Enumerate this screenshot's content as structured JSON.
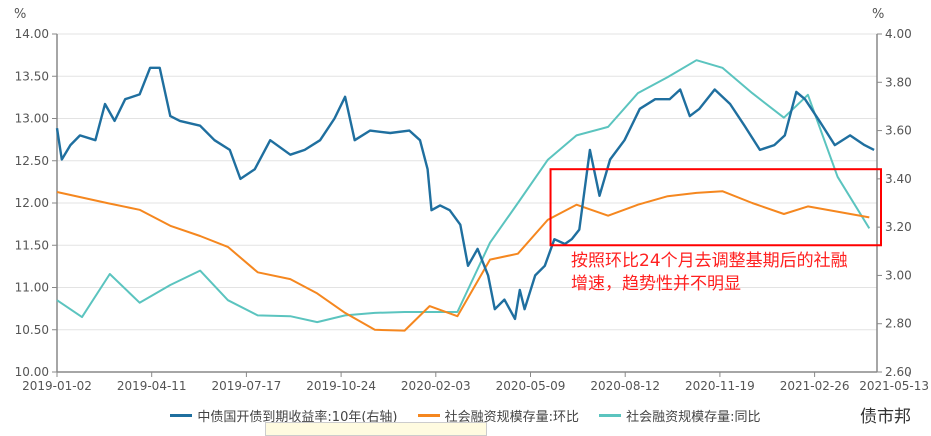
{
  "chart_data": {
    "type": "line",
    "left_unit": "%",
    "right_unit": "%",
    "left_ylim": [
      10.0,
      14.0
    ],
    "right_ylim": [
      2.6,
      4.0
    ],
    "left_ticks": [
      "10.00",
      "10.50",
      "11.00",
      "11.50",
      "12.00",
      "12.50",
      "13.00",
      "13.50",
      "14.00"
    ],
    "right_ticks": [
      "2.60",
      "2.80",
      "3.00",
      "3.20",
      "3.40",
      "3.60",
      "3.80",
      "4.00"
    ],
    "x_range": [
      "2019-01-02",
      "2021-05-05"
    ],
    "x_ticks": [
      "2019-01-02",
      "2019-04-11",
      "2019-07-17",
      "2019-10-24",
      "2020-02-03",
      "2020-05-09",
      "2020-08-12",
      "2020-11-19",
      "2021-02-26",
      "2021-05-13"
    ],
    "grid": "horizontal",
    "legend_position": "bottom",
    "series": [
      {
        "name": "中债国开债到期收益率:10年(右轴)",
        "axis": "right",
        "color": "#1f6f9f",
        "points": [
          [
            "2019-01-02",
            3.61
          ],
          [
            "2019-01-07",
            3.48
          ],
          [
            "2019-01-16",
            3.54
          ],
          [
            "2019-01-26",
            3.58
          ],
          [
            "2019-02-11",
            3.56
          ],
          [
            "2019-02-21",
            3.71
          ],
          [
            "2019-03-03",
            3.64
          ],
          [
            "2019-03-14",
            3.73
          ],
          [
            "2019-03-29",
            3.75
          ],
          [
            "2019-04-09",
            3.86
          ],
          [
            "2019-04-19",
            3.86
          ],
          [
            "2019-04-30",
            3.66
          ],
          [
            "2019-05-10",
            3.64
          ],
          [
            "2019-05-31",
            3.62
          ],
          [
            "2019-06-15",
            3.56
          ],
          [
            "2019-07-01",
            3.52
          ],
          [
            "2019-07-12",
            3.4
          ],
          [
            "2019-07-27",
            3.44
          ],
          [
            "2019-08-12",
            3.56
          ],
          [
            "2019-09-02",
            3.5
          ],
          [
            "2019-09-17",
            3.52
          ],
          [
            "2019-10-03",
            3.56
          ],
          [
            "2019-10-18",
            3.65
          ],
          [
            "2019-10-29",
            3.74
          ],
          [
            "2019-11-08",
            3.56
          ],
          [
            "2019-11-24",
            3.6
          ],
          [
            "2019-12-15",
            3.59
          ],
          [
            "2020-01-04",
            3.6
          ],
          [
            "2020-01-15",
            3.56
          ],
          [
            "2020-01-23",
            3.44
          ],
          [
            "2020-01-27",
            3.27
          ],
          [
            "2020-02-05",
            3.29
          ],
          [
            "2020-02-15",
            3.27
          ],
          [
            "2020-02-26",
            3.21
          ],
          [
            "2020-03-05",
            3.04
          ],
          [
            "2020-03-15",
            3.11
          ],
          [
            "2020-03-26",
            3.0
          ],
          [
            "2020-04-02",
            2.86
          ],
          [
            "2020-04-12",
            2.9
          ],
          [
            "2020-04-23",
            2.82
          ],
          [
            "2020-04-28",
            2.94
          ],
          [
            "2020-05-03",
            2.86
          ],
          [
            "2020-05-14",
            3.0
          ],
          [
            "2020-05-24",
            3.04
          ],
          [
            "2020-06-03",
            3.15
          ],
          [
            "2020-06-14",
            3.13
          ],
          [
            "2020-06-21",
            3.15
          ],
          [
            "2020-06-29",
            3.19
          ],
          [
            "2020-07-10",
            3.52
          ],
          [
            "2020-07-20",
            3.33
          ],
          [
            "2020-07-31",
            3.48
          ],
          [
            "2020-08-15",
            3.56
          ],
          [
            "2020-08-31",
            3.69
          ],
          [
            "2020-09-16",
            3.73
          ],
          [
            "2020-10-01",
            3.73
          ],
          [
            "2020-10-12",
            3.77
          ],
          [
            "2020-10-22",
            3.66
          ],
          [
            "2020-11-01",
            3.69
          ],
          [
            "2020-11-17",
            3.77
          ],
          [
            "2020-12-03",
            3.71
          ],
          [
            "2020-12-18",
            3.62
          ],
          [
            "2021-01-03",
            3.52
          ],
          [
            "2021-01-18",
            3.54
          ],
          [
            "2021-01-29",
            3.58
          ],
          [
            "2021-02-10",
            3.76
          ],
          [
            "2021-02-19",
            3.73
          ],
          [
            "2021-03-06",
            3.64
          ],
          [
            "2021-03-22",
            3.54
          ],
          [
            "2021-04-07",
            3.58
          ],
          [
            "2021-04-22",
            3.54
          ],
          [
            "2021-05-02",
            3.52
          ]
        ]
      },
      {
        "name": "社会融资规模存量:环比",
        "axis": "left",
        "color": "#f5871f",
        "points": [
          [
            "2019-01-02",
            12.13
          ],
          [
            "2019-02-23",
            12.0
          ],
          [
            "2019-03-29",
            11.92
          ],
          [
            "2019-04-30",
            11.73
          ],
          [
            "2019-05-31",
            11.61
          ],
          [
            "2019-06-29",
            11.48
          ],
          [
            "2019-07-30",
            11.18
          ],
          [
            "2019-09-02",
            11.1
          ],
          [
            "2019-09-30",
            10.93
          ],
          [
            "2019-10-29",
            10.7
          ],
          [
            "2019-11-29",
            10.5
          ],
          [
            "2019-12-30",
            10.49
          ],
          [
            "2020-01-25",
            10.78
          ],
          [
            "2020-02-23",
            10.66
          ],
          [
            "2020-03-28",
            11.33
          ],
          [
            "2020-04-26",
            11.4
          ],
          [
            "2020-05-27",
            11.8
          ],
          [
            "2020-06-26",
            11.98
          ],
          [
            "2020-07-29",
            11.85
          ],
          [
            "2020-08-29",
            11.98
          ],
          [
            "2020-09-29",
            12.08
          ],
          [
            "2020-10-29",
            12.12
          ],
          [
            "2020-11-25",
            12.14
          ],
          [
            "2020-12-26",
            12.0
          ],
          [
            "2021-01-28",
            11.87
          ],
          [
            "2021-02-22",
            11.96
          ],
          [
            "2021-04-27",
            11.83
          ]
        ]
      },
      {
        "name": "社会融资规模存量:同比",
        "axis": "left",
        "color": "#5bc4bf",
        "points": [
          [
            "2019-01-02",
            10.85
          ],
          [
            "2019-01-28",
            10.65
          ],
          [
            "2019-02-26",
            11.16
          ],
          [
            "2019-03-29",
            10.82
          ],
          [
            "2019-04-30",
            11.03
          ],
          [
            "2019-05-31",
            11.2
          ],
          [
            "2019-06-29",
            10.85
          ],
          [
            "2019-07-30",
            10.67
          ],
          [
            "2019-09-02",
            10.66
          ],
          [
            "2019-09-30",
            10.59
          ],
          [
            "2019-10-29",
            10.67
          ],
          [
            "2019-11-29",
            10.7
          ],
          [
            "2019-12-30",
            10.71
          ],
          [
            "2020-01-25",
            10.71
          ],
          [
            "2020-02-23",
            10.71
          ],
          [
            "2020-03-28",
            11.53
          ],
          [
            "2020-04-26",
            12.0
          ],
          [
            "2020-05-27",
            12.51
          ],
          [
            "2020-06-26",
            12.8
          ],
          [
            "2020-07-29",
            12.9
          ],
          [
            "2020-08-29",
            13.3
          ],
          [
            "2020-09-29",
            13.49
          ],
          [
            "2020-10-29",
            13.69
          ],
          [
            "2020-11-25",
            13.6
          ],
          [
            "2020-12-26",
            13.3
          ],
          [
            "2021-01-28",
            13.01
          ],
          [
            "2021-02-22",
            13.28
          ],
          [
            "2021-03-25",
            12.31
          ],
          [
            "2021-04-27",
            11.7
          ]
        ]
      }
    ],
    "annotation": {
      "line1": "按照环比24个月去调整基期后的社融",
      "line2": "增速，趋势性并不明显",
      "box_color": "#ff0000",
      "box_range": [
        "2020-05-30",
        "2021-05-05"
      ],
      "box_left_values": [
        11.5,
        12.4
      ]
    }
  },
  "watermark": "债市邦"
}
